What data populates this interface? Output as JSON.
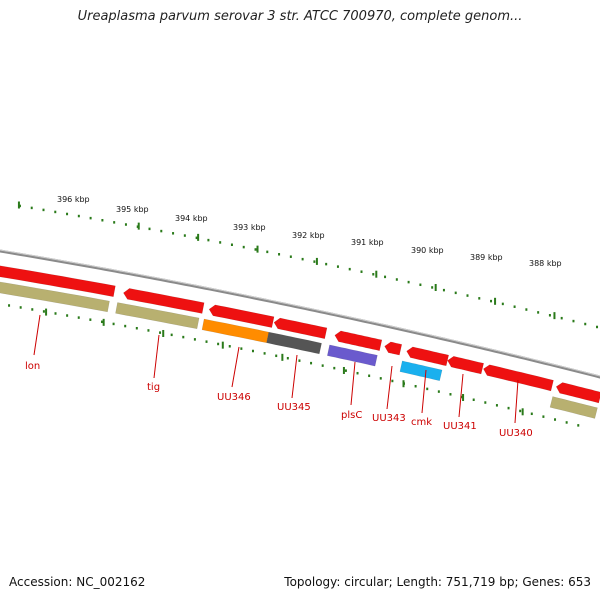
{
  "title": "Ureaplasma parvum serovar 3 str. ATCC 700970, complete genom...",
  "footer": {
    "accession": "Accession: NC_002162",
    "summary": "Topology: circular; Length: 751,719 bp; Genes: 653"
  },
  "colors": {
    "backbone": "#8a8a8a",
    "ticks": "#2a7a1a",
    "label": "#cc0000",
    "gene_red": "#ee1111",
    "gene_olive": "#b8b070",
    "gene_orange": "#ff8c00",
    "gene_gray": "#555555",
    "gene_purple": "#6a5acd",
    "gene_cyan": "#1ab0ee"
  },
  "kbp_ticks": [
    {
      "label": "396 kbp"
    },
    {
      "label": "395 kbp"
    },
    {
      "label": "394 kbp"
    },
    {
      "label": "393 kbp"
    },
    {
      "label": "392 kbp"
    },
    {
      "label": "391 kbp"
    },
    {
      "label": "390 kbp"
    },
    {
      "label": "389 kbp"
    },
    {
      "label": "388 kbp"
    }
  ],
  "gene_labels": [
    "lon",
    "tig",
    "UU346",
    "UU345",
    "plsC",
    "UU343",
    "cmk",
    "UU341",
    "UU340"
  ]
}
